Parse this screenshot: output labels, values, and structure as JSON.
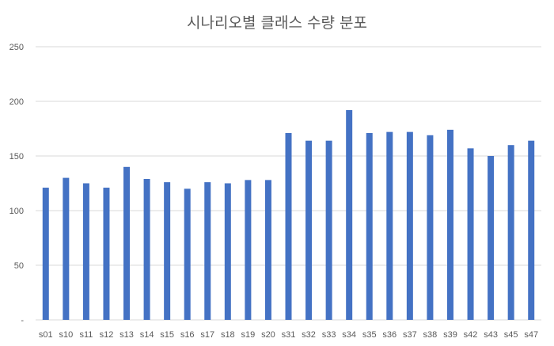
{
  "chart_data": {
    "type": "bar",
    "title": "시나리오별 클래스 수량 분포",
    "xlabel": "",
    "ylabel": "",
    "ylim": [
      0,
      250
    ],
    "yticks": [
      "-",
      "50",
      "100",
      "150",
      "200",
      "250"
    ],
    "grid": true,
    "legend": "none",
    "bar_color": "#4472C4",
    "categories": [
      "s01",
      "s10",
      "s11",
      "s12",
      "s13",
      "s14",
      "s15",
      "s16",
      "s17",
      "s18",
      "s19",
      "s20",
      "s31",
      "s32",
      "s33",
      "s34",
      "s35",
      "s36",
      "s37",
      "s38",
      "s39",
      "s42",
      "s43",
      "s45",
      "s47"
    ],
    "values": [
      121,
      130,
      125,
      121,
      140,
      129,
      126,
      120,
      126,
      125,
      128,
      128,
      171,
      164,
      164,
      192,
      171,
      172,
      172,
      169,
      174,
      157,
      150,
      160,
      164
    ]
  }
}
